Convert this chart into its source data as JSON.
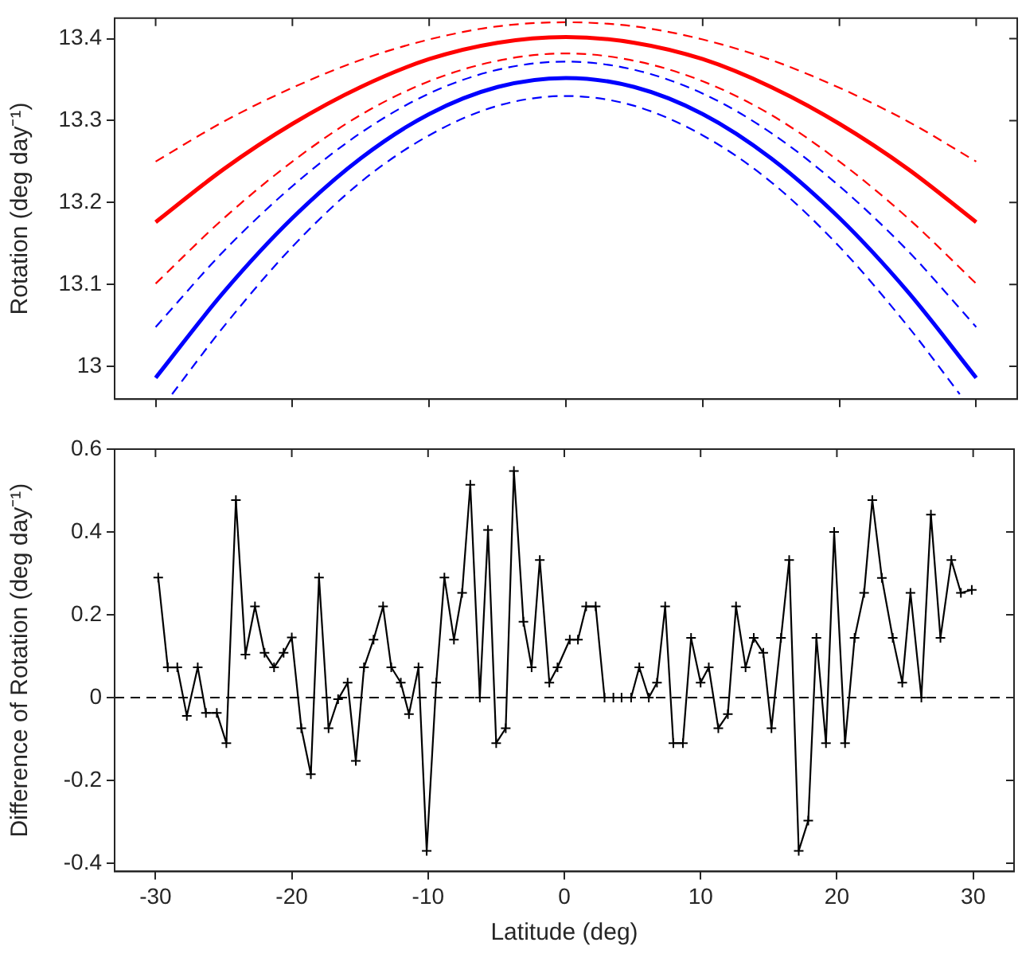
{
  "chart_data": [
    {
      "type": "line",
      "ylabel": "Rotation (deg day⁻¹)",
      "xlim": [
        -33,
        33
      ],
      "xticks": [
        -30,
        -20,
        -10,
        0,
        10,
        20,
        30
      ],
      "ylim": [
        12.96,
        13.425
      ],
      "yticks": [
        13,
        13.1,
        13.2,
        13.3,
        13.4
      ],
      "tick_labels": "y",
      "grid": false,
      "legend": false,
      "marker": "none",
      "series": [
        {
          "color": "#ff0000",
          "line_style": "dashed",
          "x": [
            -30,
            -25,
            -20,
            -15,
            -10,
            -5,
            0,
            5,
            10,
            15,
            20,
            25,
            30
          ],
          "values": [
            13.25,
            13.299,
            13.34,
            13.374,
            13.399,
            13.415,
            13.42,
            13.415,
            13.399,
            13.374,
            13.34,
            13.299,
            13.25
          ]
        },
        {
          "color": "#ff0000",
          "line_style": "solid",
          "x": [
            -30,
            -25,
            -20,
            -15,
            -10,
            -5,
            0,
            5,
            10,
            15,
            20,
            25,
            30
          ],
          "values": [
            13.176,
            13.241,
            13.296,
            13.341,
            13.375,
            13.395,
            13.402,
            13.395,
            13.375,
            13.341,
            13.296,
            13.241,
            13.176
          ]
        },
        {
          "color": "#ff0000",
          "line_style": "dashed",
          "x": [
            -30,
            -25,
            -20,
            -15,
            -10,
            -5,
            0,
            5,
            10,
            15,
            20,
            25,
            30
          ],
          "values": [
            13.101,
            13.181,
            13.25,
            13.307,
            13.348,
            13.373,
            13.382,
            13.373,
            13.348,
            13.307,
            13.25,
            13.181,
            13.101
          ]
        },
        {
          "color": "#0000ff",
          "line_style": "dashed",
          "x": [
            -30,
            -25,
            -20,
            -15,
            -10,
            -5,
            0,
            5,
            10,
            15,
            20,
            25,
            30
          ],
          "values": [
            13.048,
            13.141,
            13.22,
            13.285,
            13.333,
            13.362,
            13.372,
            13.362,
            13.333,
            13.285,
            13.22,
            13.141,
            13.048
          ]
        },
        {
          "color": "#0000ff",
          "line_style": "solid",
          "x": [
            -30,
            -25,
            -20,
            -15,
            -10,
            -5,
            0,
            5,
            10,
            15,
            20,
            25,
            30
          ],
          "values": [
            12.986,
            13.091,
            13.181,
            13.254,
            13.308,
            13.341,
            13.352,
            13.341,
            13.308,
            13.254,
            13.181,
            13.091,
            12.986
          ]
        },
        {
          "color": "#0000ff",
          "line_style": "dashed",
          "x": [
            -28.8,
            -25,
            -20,
            -15,
            -10,
            -5,
            0,
            5,
            10,
            15,
            20,
            25,
            28.8
          ],
          "values": [
            12.966,
            13.049,
            13.146,
            13.225,
            13.282,
            13.318,
            13.33,
            13.318,
            13.282,
            13.225,
            13.146,
            13.049,
            12.966
          ]
        }
      ]
    },
    {
      "type": "line",
      "xlabel": "Latitude (deg)",
      "ylabel": "Difference of Rotation (deg day⁻¹)",
      "xlim": [
        -33,
        33
      ],
      "xticks": [
        -30,
        -20,
        -10,
        0,
        10,
        20,
        30
      ],
      "ylim": [
        -0.42,
        0.6
      ],
      "yticks": [
        -0.4,
        -0.2,
        0,
        0.2,
        0.4,
        0.6
      ],
      "grid": false,
      "legend": false,
      "marker": "cross",
      "line_style": "solid",
      "ref_lines": [
        {
          "axis": "y",
          "value": 0,
          "color": "#000000",
          "line_style": "dashed"
        }
      ],
      "series": [
        {
          "color": "#000000",
          "x": [
            -29.8,
            -29.1,
            -28.4,
            -27.7,
            -26.9,
            -26.3,
            -25.5,
            -24.8,
            -24.1,
            -23.4,
            -22.7,
            -22.0,
            -21.3,
            -20.6,
            -20.0,
            -19.3,
            -18.6,
            -18.0,
            -17.3,
            -16.6,
            -15.9,
            -15.3,
            -14.7,
            -14.0,
            -13.3,
            -12.7,
            -12.0,
            -11.4,
            -10.7,
            -10.1,
            -9.4,
            -8.8,
            -8.1,
            -7.5,
            -6.9,
            -6.2,
            -5.6,
            -5.0,
            -4.3,
            -3.7,
            -3.0,
            -2.4,
            -1.8,
            -1.1,
            -0.5,
            0.4,
            1.0,
            1.6,
            2.3,
            2.95,
            3.6,
            4.2,
            4.9,
            5.5,
            6.2,
            6.8,
            7.4,
            8.0,
            8.7,
            9.3,
            10.0,
            10.6,
            11.3,
            12.0,
            12.6,
            13.3,
            13.9,
            14.6,
            15.2,
            15.9,
            16.5,
            17.2,
            17.9,
            18.5,
            19.2,
            19.8,
            20.6,
            21.3,
            22.0,
            22.6,
            23.3,
            24.1,
            24.8,
            25.4,
            26.2,
            26.9,
            27.6,
            28.4,
            29.1,
            29.9
          ],
          "values": [
            0.29,
            0.073,
            0.073,
            -0.044,
            0.073,
            -0.037,
            -0.037,
            -0.11,
            0.477,
            0.104,
            0.22,
            0.108,
            0.073,
            0.108,
            0.145,
            -0.074,
            -0.185,
            0.29,
            -0.074,
            -0.004,
            0.036,
            -0.153,
            0.073,
            0.14,
            0.22,
            0.073,
            0.036,
            -0.04,
            0.073,
            -0.37,
            0.036,
            0.29,
            0.14,
            0.253,
            0.514,
            0,
            0.405,
            -0.11,
            -0.074,
            0.547,
            0.183,
            0.073,
            0.332,
            0.036,
            0.073,
            0.14,
            0.14,
            0.22,
            0.22,
            0,
            0,
            0,
            0,
            0.073,
            0,
            0.036,
            0.22,
            -0.11,
            -0.11,
            0.144,
            0.036,
            0.073,
            -0.074,
            -0.04,
            0.22,
            0.073,
            0.144,
            0.108,
            -0.074,
            0.144,
            0.332,
            -0.37,
            -0.297,
            0.144,
            -0.11,
            0.4,
            -0.11,
            0.144,
            0.253,
            0.477,
            0.289,
            0.144,
            0.036,
            0.253,
            0,
            0.442,
            0.144,
            0.332,
            0.253,
            0.26
          ]
        }
      ]
    }
  ]
}
